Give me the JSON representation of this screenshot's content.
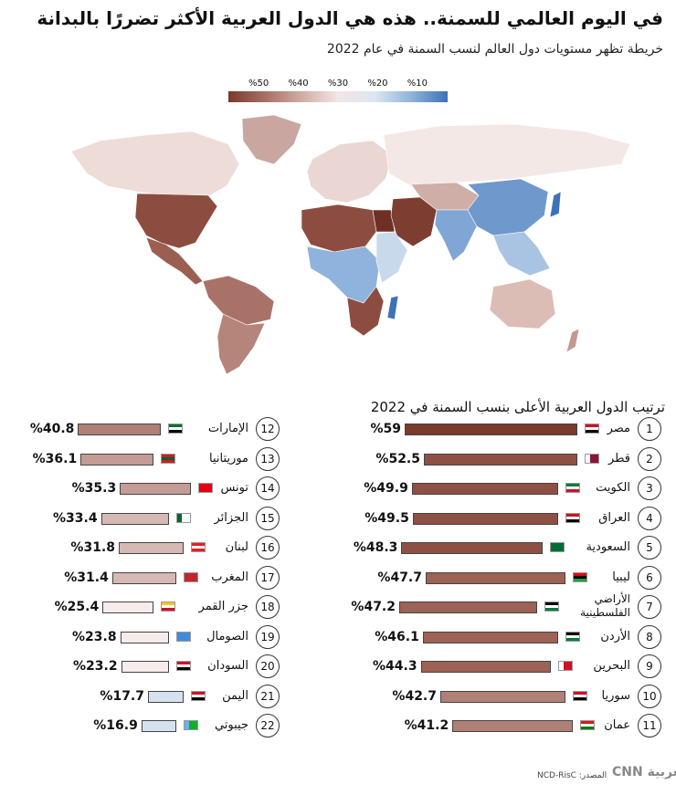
{
  "title": "في اليوم العالمي للسمنة.. هذه هي الدول العربية الأكثر تضررًا بالبدانة",
  "subtitle": "خريطة تظهر مستويات دول العالم لنسب السمنة في عام 2022",
  "legend": {
    "labels": [
      "%50",
      "%40",
      "%30",
      "%20",
      "%10"
    ]
  },
  "ranking_title": "ترتيب الدول العربية الأعلى بنسب السمنة في 2022",
  "source": "المصدر: NCD-RisC",
  "logo": "CNN بالعربية",
  "colors": {
    "high": "#7a3a2c",
    "mid": "#c49890",
    "low": "#f5e9e9",
    "lowest": "#d7e2ef",
    "blue": "#3d72b8"
  },
  "chart_data": {
    "type": "bar",
    "title": "ترتيب الدول العربية الأعلى بنسب السمنة في 2022",
    "unit": "%",
    "items": [
      {
        "rank": "1",
        "name": "مصر",
        "value": 59,
        "label": "%59",
        "flag": "egypt"
      },
      {
        "rank": "2",
        "name": "قطر",
        "value": 52.5,
        "label": "%52.5",
        "flag": "qatar"
      },
      {
        "rank": "3",
        "name": "الكويت",
        "value": 49.9,
        "label": "%49.9",
        "flag": "kuwait"
      },
      {
        "rank": "4",
        "name": "العراق",
        "value": 49.5,
        "label": "%49.5",
        "flag": "iraq"
      },
      {
        "rank": "5",
        "name": "السعودية",
        "value": 48.3,
        "label": "%48.3",
        "flag": "saudi"
      },
      {
        "rank": "6",
        "name": "ليبيا",
        "value": 47.7,
        "label": "%47.7",
        "flag": "libya"
      },
      {
        "rank": "7",
        "name": "الأراضي الفلسطينية",
        "value": 47.2,
        "label": "%47.2",
        "flag": "palestine"
      },
      {
        "rank": "8",
        "name": "الأردن",
        "value": 46.1,
        "label": "%46.1",
        "flag": "jordan"
      },
      {
        "rank": "9",
        "name": "البحرين",
        "value": 44.3,
        "label": "%44.3",
        "flag": "bahrain"
      },
      {
        "rank": "10",
        "name": "سوريا",
        "value": 42.7,
        "label": "%42.7",
        "flag": "syria"
      },
      {
        "rank": "11",
        "name": "عمان",
        "value": 41.2,
        "label": "%41.2",
        "flag": "oman"
      },
      {
        "rank": "12",
        "name": "الإمارات",
        "value": 40.8,
        "label": "%40.8",
        "flag": "uae"
      },
      {
        "rank": "13",
        "name": "موريتانيا",
        "value": 36.1,
        "label": "%36.1",
        "flag": "mauritania"
      },
      {
        "rank": "14",
        "name": "تونس",
        "value": 35.3,
        "label": "%35.3",
        "flag": "tunisia"
      },
      {
        "rank": "15",
        "name": "الجزائر",
        "value": 33.4,
        "label": "%33.4",
        "flag": "algeria"
      },
      {
        "rank": "16",
        "name": "لبنان",
        "value": 31.8,
        "label": "%31.8",
        "flag": "lebanon"
      },
      {
        "rank": "17",
        "name": "المغرب",
        "value": 31.4,
        "label": "%31.4",
        "flag": "morocco"
      },
      {
        "rank": "18",
        "name": "جزر القمر",
        "value": 25.4,
        "label": "%25.4",
        "flag": "comoros"
      },
      {
        "rank": "19",
        "name": "الصومال",
        "value": 23.8,
        "label": "%23.8",
        "flag": "somalia"
      },
      {
        "rank": "20",
        "name": "السودان",
        "value": 23.2,
        "label": "%23.2",
        "flag": "sudan"
      },
      {
        "rank": "21",
        "name": "اليمن",
        "value": 17.7,
        "label": "%17.7",
        "flag": "yemen"
      },
      {
        "rank": "22",
        "name": "جيبوتي",
        "value": 16.9,
        "label": "%16.9",
        "flag": "djibouti"
      }
    ]
  }
}
